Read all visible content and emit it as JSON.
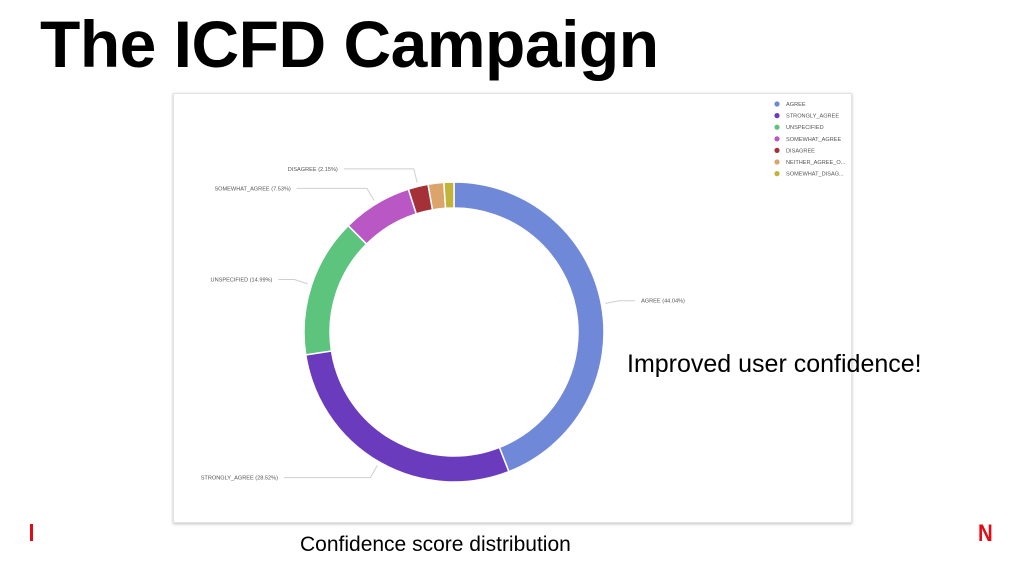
{
  "slide": {
    "title": "The ICFD Campaign",
    "callout": "Improved user confidence!",
    "caption": "Confidence score distribution",
    "brand_mark": "N",
    "brand_color": "#e50914"
  },
  "chart_data": {
    "type": "pie",
    "variant": "donut",
    "title": "",
    "legend_position": "top-right",
    "slices": [
      {
        "name": "AGREE",
        "legend_label": "AGREE",
        "callout_label": "AGREE (44.04%)",
        "value": 44.04,
        "color": "#7088d8"
      },
      {
        "name": "STRONGLY_AGREE",
        "legend_label": "STRONGLY_AGREE",
        "callout_label": "STRONGLY_AGREE (28.52%)",
        "value": 28.52,
        "color": "#6a3bbd"
      },
      {
        "name": "UNSPECIFIED",
        "legend_label": "UNSPECIFIED",
        "callout_label": "UNSPECIFIED (14.99%)",
        "value": 14.99,
        "color": "#5cc47c"
      },
      {
        "name": "SOMEWHAT_AGREE",
        "legend_label": "SOMEWHAT_AGREE",
        "callout_label": "SOMEWHAT_AGREE (7.53%)",
        "value": 7.53,
        "color": "#b957c4"
      },
      {
        "name": "DISAGREE",
        "legend_label": "DISAGREE",
        "callout_label": "DISAGREE (2.15%)",
        "value": 2.15,
        "color": "#a33137"
      },
      {
        "name": "NEITHER_AGREE_OR_DISAGREE",
        "legend_label": "NEITHER_AGREE_O...",
        "callout_label": "",
        "value": 1.69,
        "color": "#dba46a"
      },
      {
        "name": "SOMEWHAT_DISAGREE",
        "legend_label": "SOMEWHAT_DISAG...",
        "callout_label": "",
        "value": 1.08,
        "color": "#c2b33a"
      }
    ]
  }
}
